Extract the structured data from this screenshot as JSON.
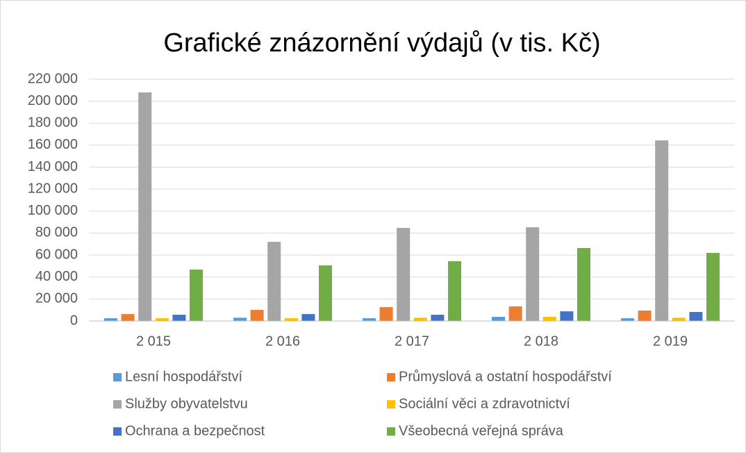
{
  "chart_data": {
    "type": "bar",
    "title": "Grafické znázornění výdajů (v tis. Kč)",
    "categories": [
      "2 015",
      "2 016",
      "2 017",
      "2 018",
      "2 019"
    ],
    "series": [
      {
        "name": "Lesní hospodářství",
        "color": "#5b9bd5",
        "values": [
          2500,
          3000,
          2500,
          3800,
          2500
        ]
      },
      {
        "name": "Průmyslová a ostatní hospodářství",
        "color": "#ed7d31",
        "values": [
          6300,
          10100,
          12600,
          13300,
          9500
        ]
      },
      {
        "name": "Služby obyvatelstvu",
        "color": "#a5a5a5",
        "values": [
          208000,
          72000,
          84700,
          85300,
          164300
        ]
      },
      {
        "name": "Sociální věci a zdravotnictví",
        "color": "#ffc000",
        "values": [
          2500,
          2500,
          3000,
          3800,
          3000
        ]
      },
      {
        "name": "Ochrana a bezpečnost",
        "color": "#4472c4",
        "values": [
          5700,
          6300,
          5700,
          8800,
          8200
        ]
      },
      {
        "name": "Všeobecná veřejná správa",
        "color": "#70ad47",
        "values": [
          46800,
          50600,
          54400,
          66400,
          62000
        ]
      }
    ],
    "ylim": [
      0,
      220000
    ],
    "yticks": [
      0,
      {
        "value": 20000,
        "label": "20 000"
      },
      {
        "value": 40000,
        "label": "40 000"
      },
      {
        "value": 60000,
        "label": "60 000"
      },
      {
        "value": 80000,
        "label": "80 000"
      },
      {
        "value": 100000,
        "label": "100 000"
      },
      {
        "value": 120000,
        "label": "120 000"
      },
      {
        "value": 140000,
        "label": "140 000"
      },
      {
        "value": 160000,
        "label": "160 000"
      },
      {
        "value": 180000,
        "label": "180 000"
      },
      {
        "value": 200000,
        "label": "200 000"
      },
      {
        "value": 220000,
        "label": "220 000"
      }
    ],
    "grid": true,
    "legend": "bottom"
  }
}
